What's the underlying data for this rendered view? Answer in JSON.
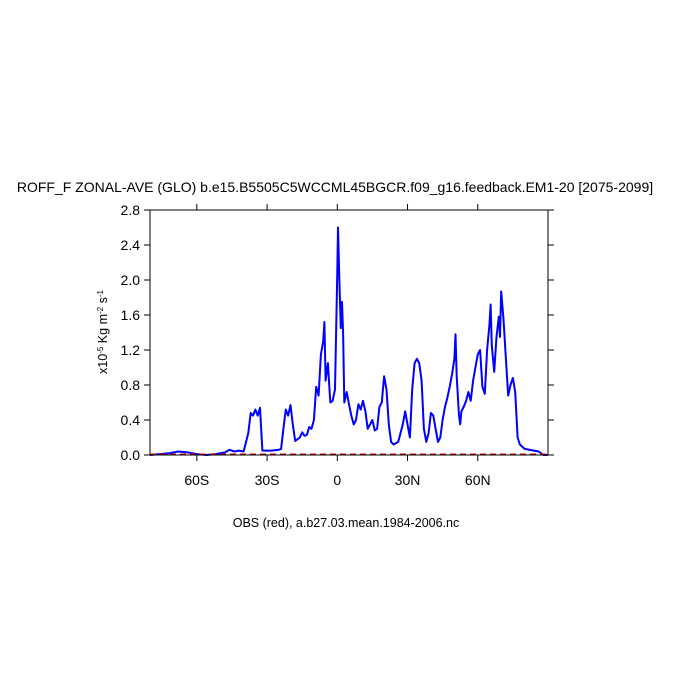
{
  "chart_data": {
    "type": "line",
    "title": "ROFF_F ZONAL-AVE (GLO) b.e15.B5505C5WCCML45BGCR.f09_g16.feedback.EM1-20 [2075-2099]",
    "subtitle": "OBS (red), a.b27.03.mean.1984-2006.nc",
    "ylabel": [
      {
        "text": "x10"
      },
      {
        "text": "-5",
        "sup": true
      },
      {
        "text": " Kg m"
      },
      {
        "text": "-2",
        "sup": true
      },
      {
        "text": " s"
      },
      {
        "text": "-1",
        "sup": true
      }
    ],
    "xlim": [
      -80,
      90
    ],
    "ylim": [
      0,
      2.8
    ],
    "xticks": [
      {
        "value": -60,
        "label": "60S"
      },
      {
        "value": -30,
        "label": "30S"
      },
      0,
      {
        "value": 30,
        "label": "30N"
      },
      {
        "value": 60,
        "label": "60N"
      }
    ],
    "yticks": [
      {
        "value": 0,
        "label": "0.0"
      },
      0.4,
      0.8,
      1.2,
      1.6,
      {
        "value": 2,
        "label": "2.0"
      },
      2.4,
      2.8
    ],
    "series": [
      {
        "color": "#0000ff",
        "x": [
          -80,
          -76,
          -72,
          -68,
          -64,
          -60,
          -56,
          -52,
          -48,
          -46,
          -44,
          -42,
          -40,
          -38,
          -37,
          -36,
          -35,
          -34,
          -33,
          -32,
          -28,
          -25,
          -24,
          -23,
          -22,
          -21,
          -20,
          -19,
          -18,
          -16,
          -15,
          -14,
          -13,
          -12,
          -11,
          -10,
          -9,
          -8,
          -7,
          -6,
          -5.5,
          -5,
          -4,
          -3,
          -2,
          -1,
          0,
          0.3,
          1,
          1.5,
          2,
          2.5,
          3,
          4,
          5,
          6,
          7,
          8,
          9,
          10,
          11,
          12,
          13,
          14,
          15,
          16,
          17,
          18,
          19,
          20,
          21,
          22,
          23,
          24,
          26,
          28,
          29,
          30,
          31,
          32,
          33,
          34,
          35,
          36,
          37,
          38,
          39,
          40,
          41,
          42,
          43,
          44,
          45,
          46,
          47,
          48,
          49,
          50,
          50.5,
          51,
          52,
          52.5,
          53,
          54,
          55,
          56,
          57,
          58,
          59,
          60,
          61,
          62,
          63,
          64,
          65,
          65.5,
          66,
          67,
          68,
          69,
          69.5,
          70,
          71,
          72,
          73,
          74,
          75,
          76,
          77,
          78,
          80,
          84,
          86,
          88,
          90
        ],
        "values": [
          0,
          0.01,
          0.02,
          0.04,
          0.03,
          0.01,
          0,
          0.01,
          0.03,
          0.06,
          0.04,
          0.05,
          0.04,
          0.25,
          0.48,
          0.45,
          0.52,
          0.45,
          0.54,
          0.05,
          0.05,
          0.06,
          0.07,
          0.3,
          0.52,
          0.45,
          0.57,
          0.35,
          0.16,
          0.2,
          0.26,
          0.22,
          0.23,
          0.32,
          0.3,
          0.4,
          0.78,
          0.68,
          1.15,
          1.3,
          1.52,
          0.85,
          1.05,
          0.6,
          0.62,
          0.75,
          2.1,
          2.6,
          1.9,
          1.45,
          1.75,
          1.4,
          0.6,
          0.72,
          0.58,
          0.45,
          0.35,
          0.4,
          0.58,
          0.52,
          0.62,
          0.5,
          0.3,
          0.35,
          0.4,
          0.28,
          0.3,
          0.55,
          0.6,
          0.9,
          0.75,
          0.35,
          0.15,
          0.12,
          0.15,
          0.35,
          0.5,
          0.35,
          0.2,
          0.75,
          1.05,
          1.1,
          1.05,
          0.85,
          0.3,
          0.15,
          0.25,
          0.48,
          0.45,
          0.3,
          0.15,
          0.2,
          0.4,
          0.55,
          0.65,
          0.78,
          0.92,
          1.1,
          1.38,
          0.9,
          0.45,
          0.35,
          0.5,
          0.55,
          0.62,
          0.72,
          0.62,
          0.85,
          1,
          1.15,
          1.2,
          0.78,
          0.7,
          1.2,
          1.5,
          1.72,
          1.25,
          0.95,
          1.35,
          1.58,
          1.35,
          1.87,
          1.55,
          1.1,
          0.68,
          0.8,
          0.88,
          0.72,
          0.2,
          0.12,
          0.07,
          0.05,
          0.04,
          0,
          0
        ]
      },
      {
        "color": "#cc0000",
        "dashed": true,
        "x": [
          -80,
          -60,
          -40,
          -20,
          0,
          20,
          40,
          60,
          80,
          90
        ],
        "values": [
          0.01,
          0.01,
          0.01,
          0.01,
          0.01,
          0.01,
          0.01,
          0.01,
          0.01,
          0.01
        ]
      }
    ]
  }
}
